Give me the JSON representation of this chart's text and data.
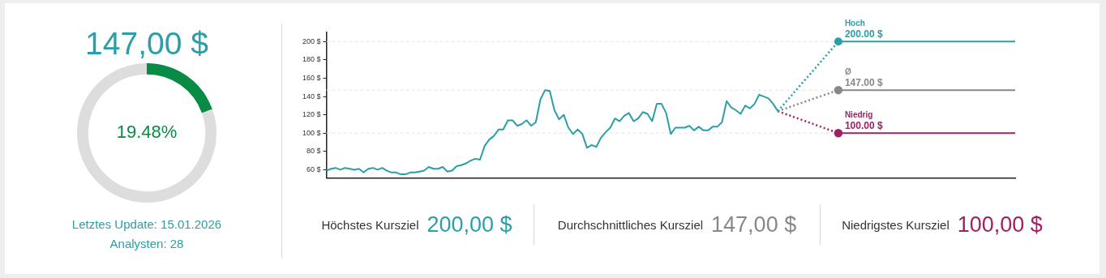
{
  "chart_data": [
    {
      "type": "donut",
      "title": "147,00 $",
      "categories": [
        null,
        null
      ],
      "values": [
        19.48,
        80.52
      ],
      "colors": [
        "#078b45",
        "#dddddd"
      ],
      "value_labels": [
        "19.48%",
        null
      ],
      "annotations": [
        "Letztes Update: 15.01.2026",
        "Analysten: 28"
      ]
    },
    {
      "type": "line",
      "categories": [
        null,
        null,
        null,
        null,
        null,
        null,
        null,
        null,
        null,
        null,
        null,
        null,
        null,
        null,
        null,
        null,
        null,
        null,
        null,
        null,
        null,
        null,
        null,
        null,
        null,
        null,
        null,
        null,
        null,
        null,
        null,
        null,
        null,
        null,
        null,
        null,
        null,
        null,
        null,
        null,
        null,
        null,
        null,
        null,
        null,
        null,
        null,
        null,
        null,
        null,
        null,
        null,
        null,
        null,
        null,
        null,
        null,
        null,
        null,
        null,
        null,
        null,
        null,
        null,
        null,
        null,
        null,
        null,
        null,
        null,
        null,
        null,
        null,
        null,
        null,
        null,
        null,
        null,
        null,
        null,
        null,
        null,
        null,
        null,
        null,
        null,
        null,
        null,
        null,
        null,
        null,
        null,
        null,
        null,
        null,
        null,
        null,
        null,
        null,
        null,
        null,
        null,
        null,
        null,
        null,
        null,
        null,
        null,
        null,
        null,
        null,
        null,
        null,
        null,
        null,
        null,
        null,
        null,
        null,
        null,
        null,
        null,
        null,
        null,
        null,
        null,
        null,
        null,
        null,
        null,
        null,
        null,
        null,
        null,
        null,
        null,
        null,
        null,
        null,
        null,
        null,
        null,
        null,
        null,
        null,
        null,
        null,
        null,
        null
      ],
      "series": [
        {
          "color": "#2a9fa8",
          "line_style": "solid",
          "marker": "none",
          "values": [
            59,
            61,
            62,
            60,
            62,
            61,
            60,
            61,
            57,
            61,
            62,
            60,
            62,
            59,
            57,
            57,
            55,
            55,
            57,
            57,
            58,
            59,
            63,
            61,
            61,
            63,
            58,
            59,
            64,
            65,
            67,
            70,
            72,
            71,
            86,
            93,
            97,
            104,
            104,
            114,
            114,
            108,
            110,
            114,
            108,
            112,
            137,
            147,
            146,
            125,
            115,
            120,
            106,
            99,
            104,
            99,
            84,
            87,
            85,
            95,
            101,
            106,
            116,
            113,
            119,
            122,
            113,
            116,
            123,
            121,
            113,
            132,
            132,
            122,
            99,
            106,
            106,
            106,
            108,
            103,
            107,
            103,
            103,
            107,
            107,
            112,
            135,
            128,
            125,
            121,
            130,
            127,
            132,
            142,
            140,
            138,
            132,
            124,
            null,
            null,
            null,
            null,
            null,
            null,
            null,
            null,
            null,
            null,
            null,
            null,
            null,
            null,
            null,
            null,
            null,
            null,
            null,
            null,
            null,
            null,
            null,
            null,
            null,
            null,
            null,
            null,
            null,
            null,
            null,
            null,
            null,
            null,
            null,
            null,
            null,
            null,
            null,
            null,
            null,
            null,
            null,
            null,
            null,
            null,
            null,
            null,
            null,
            null,
            null
          ]
        },
        {
          "color": "#2a9fa8",
          "line_style": "dotted",
          "marker": "none",
          "values": [
            null,
            null,
            null,
            null,
            null,
            null,
            null,
            null,
            null,
            null,
            null,
            null,
            null,
            null,
            null,
            null,
            null,
            null,
            null,
            null,
            null,
            null,
            null,
            null,
            null,
            null,
            null,
            null,
            null,
            null,
            null,
            null,
            null,
            null,
            null,
            null,
            null,
            null,
            null,
            null,
            null,
            null,
            null,
            null,
            null,
            null,
            null,
            null,
            null,
            null,
            null,
            null,
            null,
            null,
            null,
            null,
            null,
            null,
            null,
            null,
            null,
            null,
            null,
            null,
            null,
            null,
            null,
            null,
            null,
            null,
            null,
            null,
            null,
            null,
            null,
            null,
            null,
            null,
            null,
            null,
            null,
            null,
            null,
            null,
            null,
            null,
            null,
            null,
            null,
            null,
            null,
            null,
            null,
            null,
            null,
            null,
            null,
            124,
            null,
            null,
            null,
            null,
            null,
            null,
            null,
            null,
            null,
            null,
            null,
            null,
            200,
            null,
            null,
            null,
            null,
            null,
            null,
            null,
            null,
            null,
            null,
            null,
            null,
            null,
            null,
            null,
            null,
            null,
            null,
            null,
            null,
            null,
            null,
            null,
            null,
            null,
            null,
            null,
            null,
            null,
            null,
            null,
            null,
            null,
            null,
            null,
            null,
            null,
            null
          ]
        },
        {
          "name": "Hoch",
          "color": "#2a9fa8",
          "line_style": "solid",
          "marker": "circle",
          "values": [
            null,
            null,
            null,
            null,
            null,
            null,
            null,
            null,
            null,
            null,
            null,
            null,
            null,
            null,
            null,
            null,
            null,
            null,
            null,
            null,
            null,
            null,
            null,
            null,
            null,
            null,
            null,
            null,
            null,
            null,
            null,
            null,
            null,
            null,
            null,
            null,
            null,
            null,
            null,
            null,
            null,
            null,
            null,
            null,
            null,
            null,
            null,
            null,
            null,
            null,
            null,
            null,
            null,
            null,
            null,
            null,
            null,
            null,
            null,
            null,
            null,
            null,
            null,
            null,
            null,
            null,
            null,
            null,
            null,
            null,
            null,
            null,
            null,
            null,
            null,
            null,
            null,
            null,
            null,
            null,
            null,
            null,
            null,
            null,
            null,
            null,
            null,
            null,
            null,
            null,
            null,
            null,
            null,
            null,
            null,
            null,
            null,
            null,
            null,
            null,
            null,
            null,
            null,
            null,
            null,
            null,
            null,
            null,
            null,
            null,
            200,
            null,
            null,
            null,
            null,
            null,
            null,
            null,
            null,
            null,
            null,
            null,
            null,
            null,
            null,
            null,
            null,
            null,
            null,
            null,
            null,
            null,
            null,
            null,
            null,
            null,
            null,
            null,
            null,
            null,
            null,
            null,
            null,
            null,
            null,
            null,
            null,
            null,
            200
          ],
          "value_labels": [
            null,
            null,
            null,
            null,
            null,
            null,
            null,
            null,
            null,
            null,
            null,
            null,
            null,
            null,
            null,
            null,
            null,
            null,
            null,
            null,
            null,
            null,
            null,
            null,
            null,
            null,
            null,
            null,
            null,
            null,
            null,
            null,
            null,
            null,
            null,
            null,
            null,
            null,
            null,
            null,
            null,
            null,
            null,
            null,
            null,
            null,
            null,
            null,
            null,
            null,
            null,
            null,
            null,
            null,
            null,
            null,
            null,
            null,
            null,
            null,
            null,
            null,
            null,
            null,
            null,
            null,
            null,
            null,
            null,
            null,
            null,
            null,
            null,
            null,
            null,
            null,
            null,
            null,
            null,
            null,
            null,
            null,
            null,
            null,
            null,
            null,
            null,
            null,
            null,
            null,
            null,
            null,
            null,
            null,
            null,
            null,
            null,
            null,
            null,
            null,
            null,
            null,
            null,
            null,
            null,
            null,
            null,
            null,
            null,
            null,
            "200.00 $",
            null,
            null,
            null,
            null,
            null,
            null,
            null,
            null,
            null,
            null,
            null,
            null,
            null,
            null,
            null,
            null,
            null,
            null,
            null,
            null,
            null,
            null,
            null,
            null,
            null,
            null,
            null,
            null,
            null,
            null,
            null,
            null,
            null,
            null,
            null,
            null,
            null,
            null
          ]
        },
        {
          "color": "#888888",
          "line_style": "dotted",
          "marker": "circle",
          "values": [
            null,
            null,
            null,
            null,
            null,
            null,
            null,
            null,
            null,
            null,
            null,
            null,
            null,
            null,
            null,
            null,
            null,
            null,
            null,
            null,
            null,
            null,
            null,
            null,
            null,
            null,
            null,
            null,
            null,
            null,
            null,
            null,
            null,
            null,
            null,
            null,
            null,
            null,
            null,
            null,
            null,
            null,
            null,
            null,
            null,
            null,
            null,
            null,
            null,
            null,
            null,
            null,
            null,
            null,
            null,
            null,
            null,
            null,
            null,
            null,
            null,
            null,
            null,
            null,
            null,
            null,
            null,
            null,
            null,
            null,
            null,
            null,
            null,
            null,
            null,
            null,
            null,
            null,
            null,
            null,
            null,
            null,
            null,
            null,
            null,
            null,
            null,
            null,
            null,
            null,
            null,
            null,
            null,
            null,
            null,
            null,
            null,
            124,
            null,
            null,
            null,
            null,
            null,
            null,
            null,
            null,
            null,
            null,
            null,
            null,
            147,
            null,
            null,
            null,
            null,
            null,
            null,
            null,
            null,
            null,
            null,
            null,
            null,
            null,
            null,
            null,
            null,
            null,
            null,
            null,
            null,
            null,
            null,
            null,
            null,
            null,
            null,
            null,
            null,
            null,
            null,
            null,
            null,
            null,
            null,
            null,
            null,
            null,
            null
          ]
        },
        {
          "name": "Ø",
          "color": "#888888",
          "line_style": "solid",
          "marker": "none",
          "values": [
            null,
            null,
            null,
            null,
            null,
            null,
            null,
            null,
            null,
            null,
            null,
            null,
            null,
            null,
            null,
            null,
            null,
            null,
            null,
            null,
            null,
            null,
            null,
            null,
            null,
            null,
            null,
            null,
            null,
            null,
            null,
            null,
            null,
            null,
            null,
            null,
            null,
            null,
            null,
            null,
            null,
            null,
            null,
            null,
            null,
            null,
            null,
            null,
            null,
            null,
            null,
            null,
            null,
            null,
            null,
            null,
            null,
            null,
            null,
            null,
            null,
            null,
            null,
            null,
            null,
            null,
            null,
            null,
            null,
            null,
            null,
            null,
            null,
            null,
            null,
            null,
            null,
            null,
            null,
            null,
            null,
            null,
            null,
            null,
            null,
            null,
            null,
            null,
            null,
            null,
            null,
            null,
            null,
            null,
            null,
            null,
            null,
            null,
            null,
            null,
            null,
            null,
            null,
            null,
            null,
            null,
            null,
            null,
            null,
            null,
            147,
            null,
            null,
            null,
            null,
            null,
            null,
            null,
            null,
            null,
            null,
            null,
            null,
            null,
            null,
            null,
            null,
            null,
            null,
            null,
            null,
            null,
            null,
            null,
            null,
            null,
            null,
            null,
            null,
            null,
            null,
            null,
            null,
            null,
            null,
            null,
            null,
            null,
            147
          ],
          "value_labels": [
            null,
            null,
            null,
            null,
            null,
            null,
            null,
            null,
            null,
            null,
            null,
            null,
            null,
            null,
            null,
            null,
            null,
            null,
            null,
            null,
            null,
            null,
            null,
            null,
            null,
            null,
            null,
            null,
            null,
            null,
            null,
            null,
            null,
            null,
            null,
            null,
            null,
            null,
            null,
            null,
            null,
            null,
            null,
            null,
            null,
            null,
            null,
            null,
            null,
            null,
            null,
            null,
            null,
            null,
            null,
            null,
            null,
            null,
            null,
            null,
            null,
            null,
            null,
            null,
            null,
            null,
            null,
            null,
            null,
            null,
            null,
            null,
            null,
            null,
            null,
            null,
            null,
            null,
            null,
            null,
            null,
            null,
            null,
            null,
            null,
            null,
            null,
            null,
            null,
            null,
            null,
            null,
            null,
            null,
            null,
            null,
            null,
            null,
            null,
            null,
            null,
            null,
            null,
            null,
            null,
            null,
            null,
            null,
            null,
            null,
            "147.00 $",
            null,
            null,
            null,
            null,
            null,
            null,
            null,
            null,
            null,
            null,
            null,
            null,
            null,
            null,
            null,
            null,
            null,
            null,
            null,
            null,
            null,
            null,
            null,
            null,
            null,
            null,
            null,
            null,
            null,
            null,
            null,
            null,
            null,
            null,
            null,
            null,
            null,
            null
          ]
        },
        {
          "color": "#9c2266",
          "line_style": "dotted",
          "marker": "circle",
          "values": [
            null,
            null,
            null,
            null,
            null,
            null,
            null,
            null,
            null,
            null,
            null,
            null,
            null,
            null,
            null,
            null,
            null,
            null,
            null,
            null,
            null,
            null,
            null,
            null,
            null,
            null,
            null,
            null,
            null,
            null,
            null,
            null,
            null,
            null,
            null,
            null,
            null,
            null,
            null,
            null,
            null,
            null,
            null,
            null,
            null,
            null,
            null,
            null,
            null,
            null,
            null,
            null,
            null,
            null,
            null,
            null,
            null,
            null,
            null,
            null,
            null,
            null,
            null,
            null,
            null,
            null,
            null,
            null,
            null,
            null,
            null,
            null,
            null,
            null,
            null,
            null,
            null,
            null,
            null,
            null,
            null,
            null,
            null,
            null,
            null,
            null,
            null,
            null,
            null,
            null,
            null,
            null,
            null,
            null,
            null,
            null,
            null,
            124,
            null,
            null,
            null,
            null,
            null,
            null,
            null,
            null,
            null,
            null,
            null,
            null,
            100,
            null,
            null,
            null,
            null,
            null,
            null,
            null,
            null,
            null,
            null,
            null,
            null,
            null,
            null,
            null,
            null,
            null,
            null,
            null,
            null,
            null,
            null,
            null,
            null,
            null,
            null,
            null,
            null,
            null,
            null,
            null,
            null,
            null,
            null,
            null,
            null,
            null,
            null
          ]
        },
        {
          "name": "Niedrig",
          "color": "#9c2266",
          "line_style": "solid",
          "marker": "none",
          "values": [
            null,
            null,
            null,
            null,
            null,
            null,
            null,
            null,
            null,
            null,
            null,
            null,
            null,
            null,
            null,
            null,
            null,
            null,
            null,
            null,
            null,
            null,
            null,
            null,
            null,
            null,
            null,
            null,
            null,
            null,
            null,
            null,
            null,
            null,
            null,
            null,
            null,
            null,
            null,
            null,
            null,
            null,
            null,
            null,
            null,
            null,
            null,
            null,
            null,
            null,
            null,
            null,
            null,
            null,
            null,
            null,
            null,
            null,
            null,
            null,
            null,
            null,
            null,
            null,
            null,
            null,
            null,
            null,
            null,
            null,
            null,
            null,
            null,
            null,
            null,
            null,
            null,
            null,
            null,
            null,
            null,
            null,
            null,
            null,
            null,
            null,
            null,
            null,
            null,
            null,
            null,
            null,
            null,
            null,
            null,
            null,
            null,
            null,
            null,
            null,
            null,
            null,
            null,
            null,
            null,
            null,
            null,
            null,
            null,
            null,
            100,
            null,
            null,
            null,
            null,
            null,
            null,
            null,
            null,
            null,
            null,
            null,
            null,
            null,
            null,
            null,
            null,
            null,
            null,
            null,
            null,
            null,
            null,
            null,
            null,
            null,
            null,
            null,
            null,
            null,
            null,
            null,
            null,
            null,
            null,
            null,
            null,
            null,
            100
          ],
          "value_labels": [
            null,
            null,
            null,
            null,
            null,
            null,
            null,
            null,
            null,
            null,
            null,
            null,
            null,
            null,
            null,
            null,
            null,
            null,
            null,
            null,
            null,
            null,
            null,
            null,
            null,
            null,
            null,
            null,
            null,
            null,
            null,
            null,
            null,
            null,
            null,
            null,
            null,
            null,
            null,
            null,
            null,
            null,
            null,
            null,
            null,
            null,
            null,
            null,
            null,
            null,
            null,
            null,
            null,
            null,
            null,
            null,
            null,
            null,
            null,
            null,
            null,
            null,
            null,
            null,
            null,
            null,
            null,
            null,
            null,
            null,
            null,
            null,
            null,
            null,
            null,
            null,
            null,
            null,
            null,
            null,
            null,
            null,
            null,
            null,
            null,
            null,
            null,
            null,
            null,
            null,
            null,
            null,
            null,
            null,
            null,
            null,
            null,
            null,
            null,
            null,
            null,
            null,
            null,
            null,
            null,
            null,
            null,
            null,
            null,
            null,
            "100.00 $",
            null,
            null,
            null,
            null,
            null,
            null,
            null,
            null,
            null,
            null,
            null,
            null,
            null,
            null,
            null,
            null,
            null,
            null,
            null,
            null,
            null,
            null,
            null,
            null,
            null,
            null,
            null,
            null,
            null,
            null,
            null,
            null,
            null,
            null,
            null,
            null,
            null,
            null
          ]
        }
      ],
      "ylim": [
        51,
        210
      ],
      "yticks": [
        {
          "value": 60,
          "label": "60 $"
        },
        {
          "value": 80,
          "label": "80 $"
        },
        {
          "value": 100,
          "label": "100 $"
        },
        {
          "value": 120,
          "label": "120 $"
        },
        {
          "value": 140,
          "label": "140 $"
        },
        {
          "value": 160,
          "label": "160 $"
        },
        {
          "value": 180,
          "label": "180 $"
        },
        {
          "value": 200,
          "label": "200 $"
        }
      ],
      "tick_labels": "y",
      "grid": false,
      "legend": false,
      "ref_lines": [
        {
          "axis": "y",
          "value": 200,
          "color": "#e4e4e4",
          "line_style": "dashed"
        },
        {
          "axis": "y",
          "value": 147,
          "color": "#e4e4e4",
          "line_style": "dashed"
        },
        {
          "axis": "y",
          "value": 100,
          "color": "#e4e4e4",
          "line_style": "dashed"
        }
      ],
      "annotations": [
        "Höchstes Kursziel",
        "200,00 $",
        "Durchschnittliches Kursziel",
        "147,00 $",
        "Niedrigstes Kursziel",
        "100,00 $"
      ]
    }
  ]
}
